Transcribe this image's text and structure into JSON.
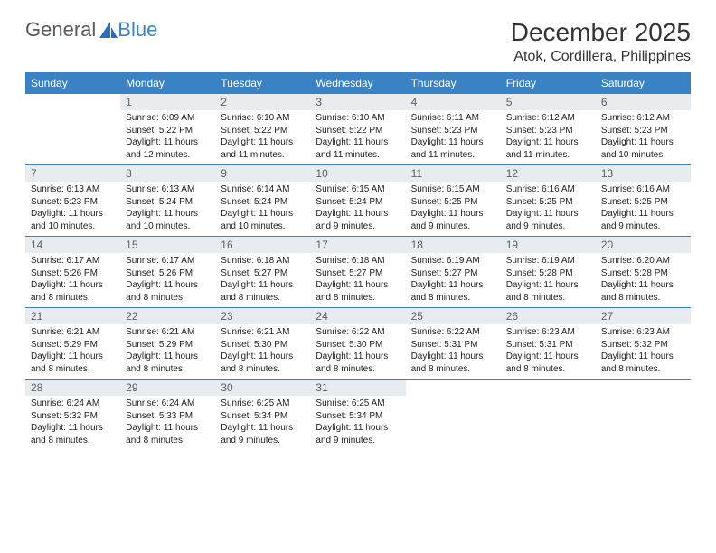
{
  "logo": {
    "text1": "General",
    "text2": "Blue"
  },
  "title": "December 2025",
  "location": "Atok, Cordillera, Philippines",
  "header_bg": "#3b82c4",
  "header_fg": "#ffffff",
  "daynum_bg": "#e8ecef",
  "daynum_fg": "#5a6168",
  "border_color": "#3b82c4",
  "text_color": "#222222",
  "days": [
    "Sunday",
    "Monday",
    "Tuesday",
    "Wednesday",
    "Thursday",
    "Friday",
    "Saturday"
  ],
  "weeks": [
    [
      {
        "num": "",
        "sunrise": "",
        "sunset": "",
        "daylight": ""
      },
      {
        "num": "1",
        "sunrise": "Sunrise: 6:09 AM",
        "sunset": "Sunset: 5:22 PM",
        "daylight": "Daylight: 11 hours and 12 minutes."
      },
      {
        "num": "2",
        "sunrise": "Sunrise: 6:10 AM",
        "sunset": "Sunset: 5:22 PM",
        "daylight": "Daylight: 11 hours and 11 minutes."
      },
      {
        "num": "3",
        "sunrise": "Sunrise: 6:10 AM",
        "sunset": "Sunset: 5:22 PM",
        "daylight": "Daylight: 11 hours and 11 minutes."
      },
      {
        "num": "4",
        "sunrise": "Sunrise: 6:11 AM",
        "sunset": "Sunset: 5:23 PM",
        "daylight": "Daylight: 11 hours and 11 minutes."
      },
      {
        "num": "5",
        "sunrise": "Sunrise: 6:12 AM",
        "sunset": "Sunset: 5:23 PM",
        "daylight": "Daylight: 11 hours and 11 minutes."
      },
      {
        "num": "6",
        "sunrise": "Sunrise: 6:12 AM",
        "sunset": "Sunset: 5:23 PM",
        "daylight": "Daylight: 11 hours and 10 minutes."
      }
    ],
    [
      {
        "num": "7",
        "sunrise": "Sunrise: 6:13 AM",
        "sunset": "Sunset: 5:23 PM",
        "daylight": "Daylight: 11 hours and 10 minutes."
      },
      {
        "num": "8",
        "sunrise": "Sunrise: 6:13 AM",
        "sunset": "Sunset: 5:24 PM",
        "daylight": "Daylight: 11 hours and 10 minutes."
      },
      {
        "num": "9",
        "sunrise": "Sunrise: 6:14 AM",
        "sunset": "Sunset: 5:24 PM",
        "daylight": "Daylight: 11 hours and 10 minutes."
      },
      {
        "num": "10",
        "sunrise": "Sunrise: 6:15 AM",
        "sunset": "Sunset: 5:24 PM",
        "daylight": "Daylight: 11 hours and 9 minutes."
      },
      {
        "num": "11",
        "sunrise": "Sunrise: 6:15 AM",
        "sunset": "Sunset: 5:25 PM",
        "daylight": "Daylight: 11 hours and 9 minutes."
      },
      {
        "num": "12",
        "sunrise": "Sunrise: 6:16 AM",
        "sunset": "Sunset: 5:25 PM",
        "daylight": "Daylight: 11 hours and 9 minutes."
      },
      {
        "num": "13",
        "sunrise": "Sunrise: 6:16 AM",
        "sunset": "Sunset: 5:25 PM",
        "daylight": "Daylight: 11 hours and 9 minutes."
      }
    ],
    [
      {
        "num": "14",
        "sunrise": "Sunrise: 6:17 AM",
        "sunset": "Sunset: 5:26 PM",
        "daylight": "Daylight: 11 hours and 8 minutes."
      },
      {
        "num": "15",
        "sunrise": "Sunrise: 6:17 AM",
        "sunset": "Sunset: 5:26 PM",
        "daylight": "Daylight: 11 hours and 8 minutes."
      },
      {
        "num": "16",
        "sunrise": "Sunrise: 6:18 AM",
        "sunset": "Sunset: 5:27 PM",
        "daylight": "Daylight: 11 hours and 8 minutes."
      },
      {
        "num": "17",
        "sunrise": "Sunrise: 6:18 AM",
        "sunset": "Sunset: 5:27 PM",
        "daylight": "Daylight: 11 hours and 8 minutes."
      },
      {
        "num": "18",
        "sunrise": "Sunrise: 6:19 AM",
        "sunset": "Sunset: 5:27 PM",
        "daylight": "Daylight: 11 hours and 8 minutes."
      },
      {
        "num": "19",
        "sunrise": "Sunrise: 6:19 AM",
        "sunset": "Sunset: 5:28 PM",
        "daylight": "Daylight: 11 hours and 8 minutes."
      },
      {
        "num": "20",
        "sunrise": "Sunrise: 6:20 AM",
        "sunset": "Sunset: 5:28 PM",
        "daylight": "Daylight: 11 hours and 8 minutes."
      }
    ],
    [
      {
        "num": "21",
        "sunrise": "Sunrise: 6:21 AM",
        "sunset": "Sunset: 5:29 PM",
        "daylight": "Daylight: 11 hours and 8 minutes."
      },
      {
        "num": "22",
        "sunrise": "Sunrise: 6:21 AM",
        "sunset": "Sunset: 5:29 PM",
        "daylight": "Daylight: 11 hours and 8 minutes."
      },
      {
        "num": "23",
        "sunrise": "Sunrise: 6:21 AM",
        "sunset": "Sunset: 5:30 PM",
        "daylight": "Daylight: 11 hours and 8 minutes."
      },
      {
        "num": "24",
        "sunrise": "Sunrise: 6:22 AM",
        "sunset": "Sunset: 5:30 PM",
        "daylight": "Daylight: 11 hours and 8 minutes."
      },
      {
        "num": "25",
        "sunrise": "Sunrise: 6:22 AM",
        "sunset": "Sunset: 5:31 PM",
        "daylight": "Daylight: 11 hours and 8 minutes."
      },
      {
        "num": "26",
        "sunrise": "Sunrise: 6:23 AM",
        "sunset": "Sunset: 5:31 PM",
        "daylight": "Daylight: 11 hours and 8 minutes."
      },
      {
        "num": "27",
        "sunrise": "Sunrise: 6:23 AM",
        "sunset": "Sunset: 5:32 PM",
        "daylight": "Daylight: 11 hours and 8 minutes."
      }
    ],
    [
      {
        "num": "28",
        "sunrise": "Sunrise: 6:24 AM",
        "sunset": "Sunset: 5:32 PM",
        "daylight": "Daylight: 11 hours and 8 minutes."
      },
      {
        "num": "29",
        "sunrise": "Sunrise: 6:24 AM",
        "sunset": "Sunset: 5:33 PM",
        "daylight": "Daylight: 11 hours and 8 minutes."
      },
      {
        "num": "30",
        "sunrise": "Sunrise: 6:25 AM",
        "sunset": "Sunset: 5:34 PM",
        "daylight": "Daylight: 11 hours and 9 minutes."
      },
      {
        "num": "31",
        "sunrise": "Sunrise: 6:25 AM",
        "sunset": "Sunset: 5:34 PM",
        "daylight": "Daylight: 11 hours and 9 minutes."
      },
      {
        "num": "",
        "sunrise": "",
        "sunset": "",
        "daylight": ""
      },
      {
        "num": "",
        "sunrise": "",
        "sunset": "",
        "daylight": ""
      },
      {
        "num": "",
        "sunrise": "",
        "sunset": "",
        "daylight": ""
      }
    ]
  ]
}
